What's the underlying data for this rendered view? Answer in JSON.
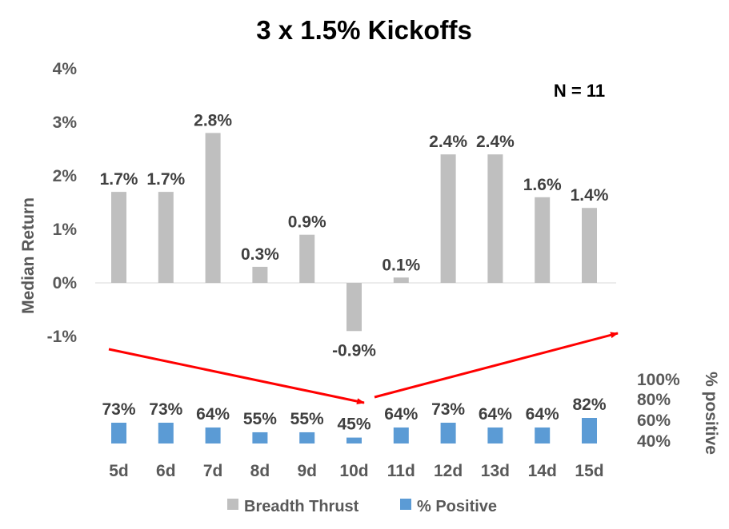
{
  "chart_data": {
    "type": "bar",
    "title": "3 x 1.5% Kickoffs",
    "annotation": "N = 11",
    "categories": [
      "5d",
      "6d",
      "7d",
      "8d",
      "9d",
      "10d",
      "11d",
      "12d",
      "13d",
      "14d",
      "15d"
    ],
    "ylabel": "Median Return",
    "ylim": [
      -1,
      4
    ],
    "yticks": [
      "4%",
      "3%",
      "2%",
      "1%",
      "0%",
      "-1%"
    ],
    "y2label": "% positive",
    "y2ticks": [
      "100%",
      "80%",
      "60%",
      "40%"
    ],
    "series": [
      {
        "name": "Breadth Thrust",
        "color": "#bfbfbf",
        "values": [
          1.7,
          1.7,
          2.8,
          0.3,
          0.9,
          -0.9,
          0.1,
          2.4,
          2.4,
          1.6,
          1.4
        ],
        "labels": [
          "1.7%",
          "1.7%",
          "2.8%",
          "0.3%",
          "0.9%",
          "-0.9%",
          "0.1%",
          "2.4%",
          "2.4%",
          "1.6%",
          "1.4%"
        ]
      },
      {
        "name": "% Positive",
        "color": "#5b9bd5",
        "values": [
          73,
          73,
          64,
          55,
          55,
          45,
          64,
          73,
          64,
          64,
          82
        ],
        "labels": [
          "73%",
          "73%",
          "64%",
          "55%",
          "55%",
          "45%",
          "64%",
          "73%",
          "64%",
          "64%",
          "82%"
        ]
      }
    ],
    "arrow_color": "#ff0000",
    "legend_position": "bottom"
  }
}
